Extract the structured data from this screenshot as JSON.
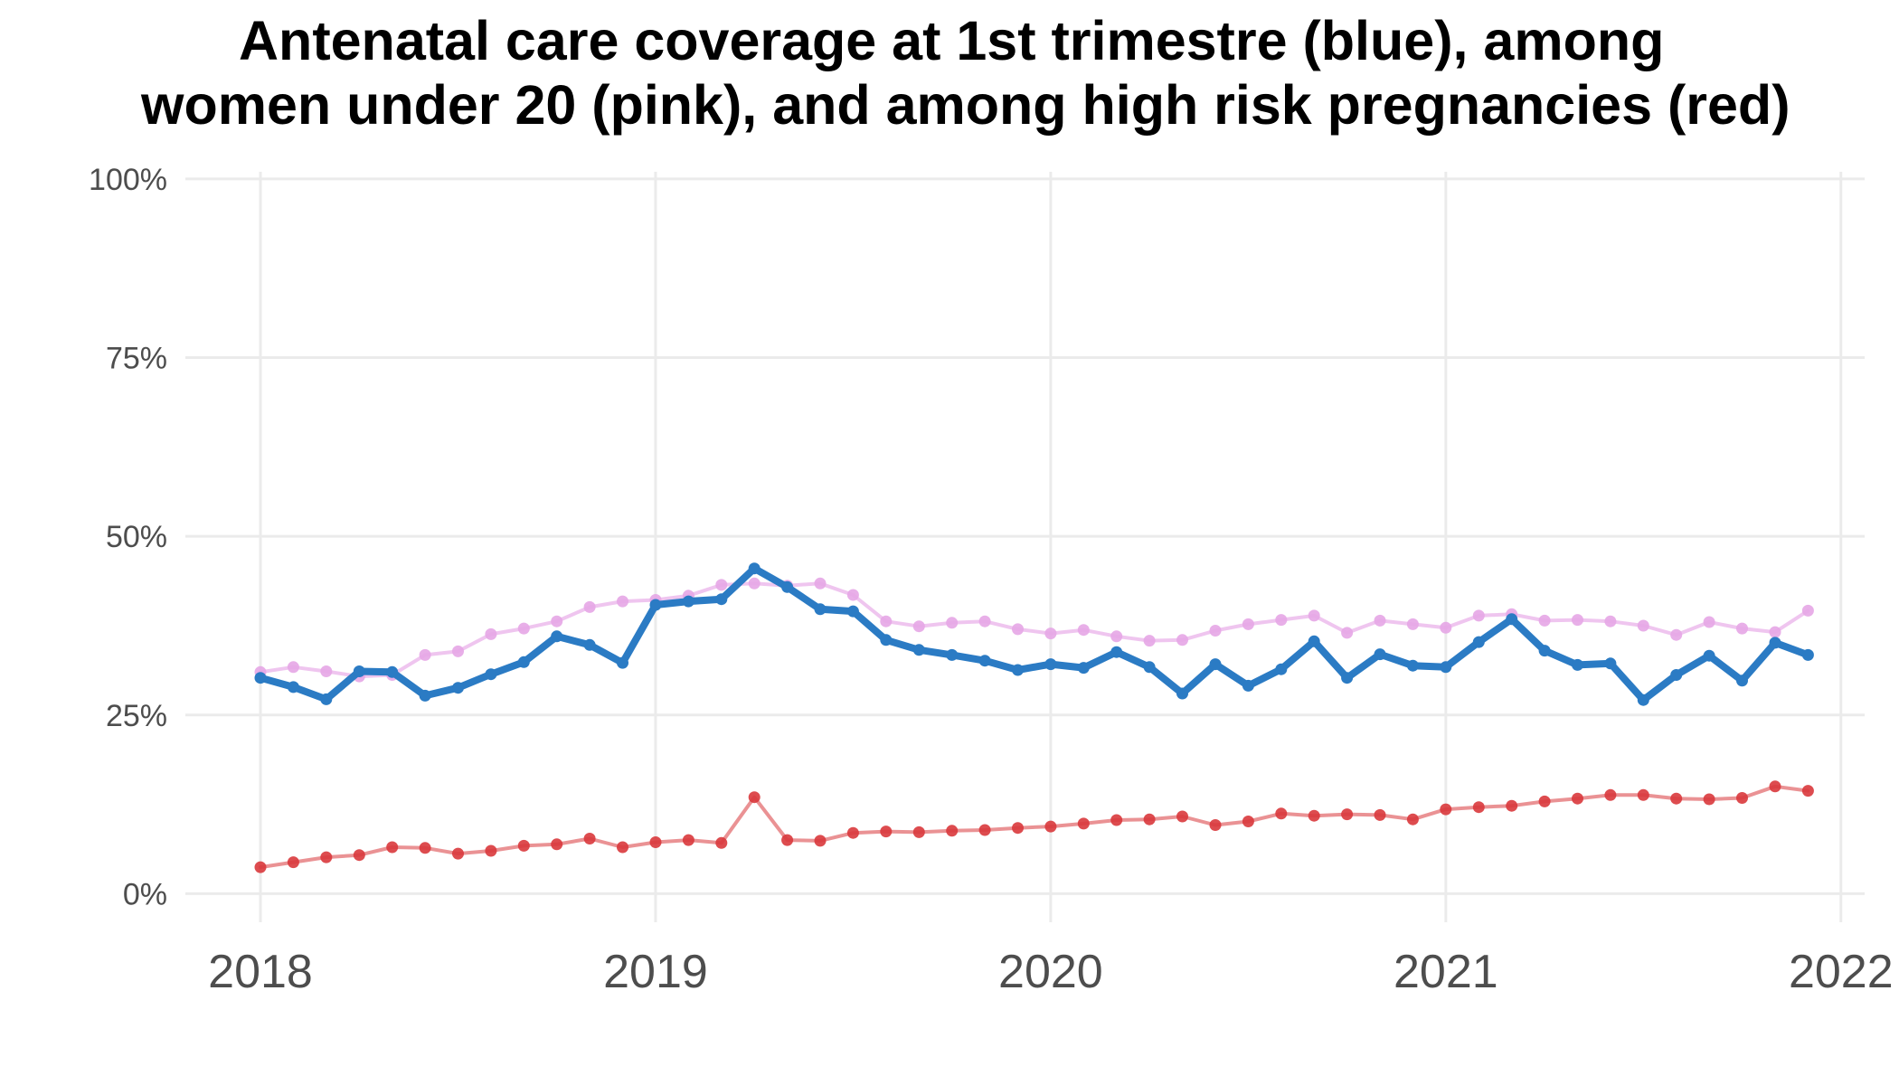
{
  "chart_data": {
    "type": "line",
    "title_line1": "Antenatal care coverage at 1st trimestre (blue), among",
    "title_line2": "women under 20 (pink), and among high risk pregnancies (red)",
    "xlabel": "",
    "ylabel": "",
    "x_ticks": [
      "2018",
      "2019",
      "2020",
      "2021",
      "2022"
    ],
    "y_ticks": [
      "0%",
      "25%",
      "50%",
      "75%",
      "100%"
    ],
    "xlim": [
      2017.81,
      2022.06
    ],
    "ylim": [
      -4,
      101
    ],
    "grid": true,
    "x_start": 2018,
    "x_step_months": 1,
    "series": [
      {
        "color": "#e6a6e6",
        "values": [
          31,
          31.7,
          31.1,
          30.4,
          30.6,
          33.4,
          33.9,
          36.3,
          37.1,
          38.1,
          40.1,
          40.9,
          41.1,
          41.7,
          43.2,
          43.4,
          43.1,
          43.4,
          41.8,
          38.1,
          37.4,
          37.9,
          38.1,
          37.0,
          36.4,
          36.9,
          36.0,
          35.4,
          35.5,
          36.8,
          37.7,
          38.3,
          38.9,
          36.5,
          38.2,
          37.7,
          37.2,
          38.9,
          39.1,
          38.2,
          38.3,
          38.1,
          37.5,
          36.2,
          38.0,
          37.1,
          36.6,
          39.6
        ]
      },
      {
        "color": "#2b7bc4",
        "values": [
          30.2,
          28.9,
          27.2,
          31.1,
          31.0,
          27.7,
          28.8,
          30.7,
          32.4,
          36.0,
          34.8,
          32.3,
          40.4,
          40.9,
          41.2,
          45.5,
          42.9,
          39.8,
          39.5,
          35.5,
          34.1,
          33.4,
          32.6,
          31.3,
          32.1,
          31.6,
          33.8,
          31.7,
          28.0,
          32.1,
          29.1,
          31.4,
          35.3,
          30.2,
          33.5,
          31.9,
          31.7,
          35.2,
          38.4,
          34.0,
          32.0,
          32.2,
          27.1,
          30.6,
          33.3,
          29.8,
          35.1,
          33.4
        ]
      },
      {
        "color": "#d9383c",
        "values": [
          3.7,
          4.4,
          5.1,
          5.4,
          6.5,
          6.4,
          5.6,
          6.0,
          6.7,
          6.9,
          7.7,
          6.5,
          7.2,
          7.5,
          7.1,
          13.5,
          7.5,
          7.4,
          8.5,
          8.7,
          8.6,
          8.8,
          8.9,
          9.2,
          9.4,
          9.8,
          10.3,
          10.4,
          10.8,
          9.6,
          10.1,
          11.2,
          10.9,
          11.1,
          11.0,
          10.4,
          11.8,
          12.1,
          12.3,
          12.9,
          13.3,
          13.8,
          13.8,
          13.3,
          13.2,
          13.4,
          15.0,
          14.4
        ]
      }
    ]
  }
}
